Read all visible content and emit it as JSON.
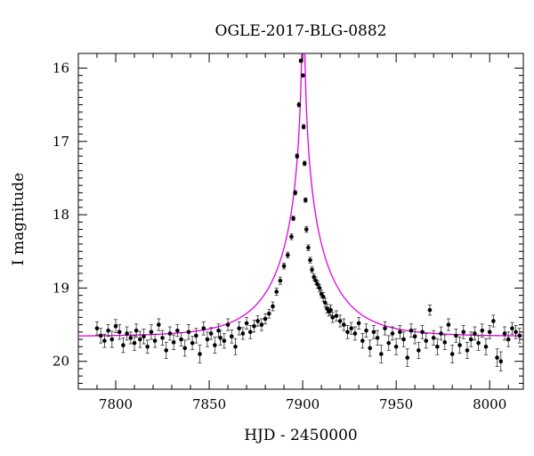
{
  "chart_data": {
    "type": "scatter",
    "title": "OGLE-2017-BLG-0882",
    "xlabel": "HJD - 2450000",
    "ylabel": "I magnitude",
    "xlim": [
      7780,
      8018
    ],
    "ylim": [
      20.38,
      15.8
    ],
    "y_inverted": true,
    "x_ticks": [
      7800,
      7850,
      7900,
      7950,
      8000
    ],
    "x_tick_labels": [
      "7800",
      "7850",
      "7900",
      "7950",
      "8000"
    ],
    "y_ticks": [
      16,
      17,
      18,
      19,
      20
    ],
    "y_tick_labels": [
      "16",
      "17",
      "18",
      "19",
      "20"
    ],
    "grid": false,
    "legend": "none",
    "colors": {
      "data": "#000000",
      "model": "#e000e0"
    },
    "model": {
      "t0": 7900.3,
      "baseline_mag": 19.66,
      "u0": 0.006,
      "tE": 30
    },
    "series": [
      {
        "kind": "points",
        "marker": "filled-circle",
        "error_bars": true,
        "x": [
          7790,
          7792,
          7794,
          7796,
          7798,
          7800,
          7802,
          7804,
          7806,
          7808,
          7810,
          7811,
          7813,
          7815,
          7817,
          7819,
          7821,
          7823,
          7825,
          7827,
          7829,
          7831,
          7833,
          7835,
          7837,
          7839,
          7841,
          7843,
          7845,
          7847,
          7849,
          7851,
          7853,
          7855,
          7856,
          7858,
          7860,
          7862,
          7864,
          7866,
          7868,
          7870,
          7872,
          7874,
          7876,
          7878,
          7880,
          7882,
          7884,
          7886,
          7888,
          7890,
          7892,
          7894,
          7895,
          7896,
          7897,
          7898,
          7899,
          7900.1,
          7900.5,
          7901,
          7901.5,
          7902,
          7903,
          7904,
          7905,
          7906,
          7907,
          7908,
          7909,
          7910,
          7911,
          7912,
          7913,
          7914,
          7915,
          7916,
          7918,
          7920,
          7922,
          7924,
          7926,
          7928,
          7930,
          7932,
          7934,
          7936,
          7938,
          7940,
          7942,
          7944,
          7946,
          7948,
          7950,
          7952,
          7954,
          7956,
          7958,
          7960,
          7962,
          7964,
          7966,
          7968,
          7970,
          7972,
          7974,
          7976,
          7978,
          7980,
          7982,
          7984,
          7986,
          7988,
          7990,
          7992,
          7994,
          7996,
          7998,
          8000,
          8002,
          8004,
          8006,
          8008,
          8010,
          8012,
          8014,
          8016
        ],
        "y": [
          19.55,
          19.65,
          19.72,
          19.58,
          19.7,
          19.52,
          19.6,
          19.78,
          19.62,
          19.68,
          19.75,
          19.58,
          19.7,
          19.66,
          19.8,
          19.6,
          19.72,
          19.5,
          19.68,
          19.85,
          19.62,
          19.74,
          19.58,
          19.7,
          19.82,
          19.6,
          19.75,
          19.65,
          19.9,
          19.55,
          19.7,
          19.62,
          19.78,
          19.58,
          19.68,
          19.72,
          19.5,
          19.66,
          19.8,
          19.55,
          19.62,
          19.48,
          19.6,
          19.52,
          19.45,
          19.5,
          19.42,
          19.35,
          19.25,
          19.05,
          18.9,
          18.7,
          18.55,
          18.3,
          18.05,
          17.7,
          17.2,
          16.5,
          15.9,
          16.1,
          16.8,
          17.3,
          17.8,
          18.2,
          18.45,
          18.62,
          18.75,
          18.85,
          18.9,
          18.95,
          19.0,
          19.08,
          19.12,
          19.2,
          19.28,
          19.32,
          19.3,
          19.4,
          19.38,
          19.45,
          19.5,
          19.6,
          19.55,
          19.62,
          19.48,
          19.72,
          19.58,
          19.82,
          19.6,
          19.68,
          19.9,
          19.55,
          19.75,
          19.62,
          19.8,
          19.6,
          19.7,
          19.95,
          19.58,
          19.66,
          19.85,
          19.6,
          19.72,
          19.3,
          19.68,
          19.8,
          19.62,
          19.74,
          19.5,
          19.9,
          19.65,
          19.78,
          19.6,
          19.85,
          19.7,
          19.62,
          19.75,
          19.58,
          19.8,
          19.6,
          19.45,
          19.95,
          20.0,
          19.62,
          19.7,
          19.55,
          19.6,
          19.65
        ],
        "err": [
          0.09,
          0.1,
          0.09,
          0.08,
          0.11,
          0.09,
          0.1,
          0.1,
          0.09,
          0.08,
          0.1,
          0.09,
          0.11,
          0.1,
          0.09,
          0.1,
          0.09,
          0.08,
          0.1,
          0.11,
          0.09,
          0.1,
          0.08,
          0.09,
          0.11,
          0.1,
          0.09,
          0.1,
          0.12,
          0.09,
          0.1,
          0.08,
          0.11,
          0.09,
          0.1,
          0.1,
          0.08,
          0.09,
          0.11,
          0.09,
          0.08,
          0.08,
          0.09,
          0.08,
          0.07,
          0.08,
          0.07,
          0.06,
          0.06,
          0.05,
          0.05,
          0.04,
          0.04,
          0.04,
          0.03,
          0.03,
          0.03,
          0.03,
          0.02,
          0.02,
          0.03,
          0.03,
          0.03,
          0.04,
          0.04,
          0.04,
          0.04,
          0.04,
          0.05,
          0.05,
          0.05,
          0.05,
          0.06,
          0.06,
          0.06,
          0.06,
          0.07,
          0.07,
          0.07,
          0.08,
          0.08,
          0.09,
          0.08,
          0.09,
          0.08,
          0.1,
          0.09,
          0.11,
          0.09,
          0.1,
          0.12,
          0.09,
          0.1,
          0.09,
          0.11,
          0.09,
          0.1,
          0.12,
          0.09,
          0.1,
          0.11,
          0.09,
          0.1,
          0.07,
          0.1,
          0.11,
          0.09,
          0.1,
          0.08,
          0.12,
          0.09,
          0.11,
          0.09,
          0.11,
          0.1,
          0.09,
          0.1,
          0.09,
          0.11,
          0.09,
          0.08,
          0.12,
          0.13,
          0.09,
          0.1,
          0.08,
          0.09,
          0.1
        ]
      },
      {
        "kind": "model-curve",
        "color": "#e000e0"
      }
    ]
  }
}
